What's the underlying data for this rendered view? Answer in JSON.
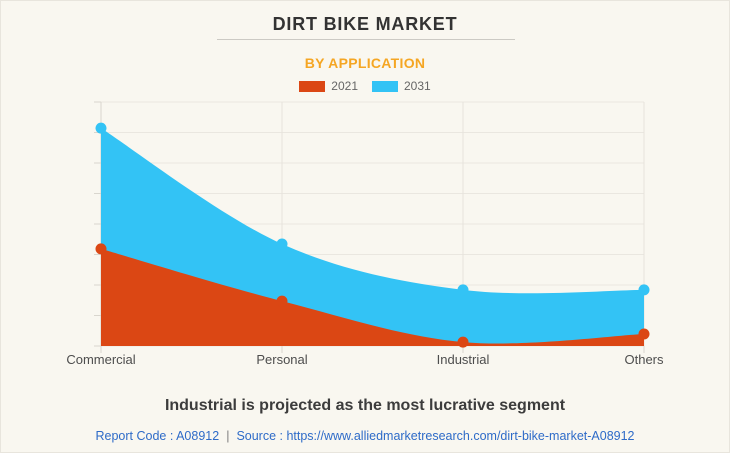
{
  "header": {
    "title": "DIRT BIKE MARKET",
    "subtitle": "BY APPLICATION"
  },
  "legend": [
    {
      "label": "2021",
      "color": "#DB4714"
    },
    {
      "label": "2031",
      "color": "#33C3F5"
    }
  ],
  "chart_data": {
    "type": "area",
    "categories": [
      "Commercial",
      "Personal",
      "Industrial",
      "Others"
    ],
    "series": [
      {
        "name": "2031",
        "color": "#33C3F5",
        "values": [
          89.3,
          41.8,
          23.0,
          23.0
        ]
      },
      {
        "name": "2021",
        "color": "#DB4714",
        "values": [
          39.8,
          18.4,
          1.6,
          4.9
        ]
      }
    ],
    "title": "DIRT BIKE MARKET",
    "subtitle": "BY APPLICATION",
    "xlabel": "",
    "ylabel": "",
    "ylim": [
      0,
      100
    ],
    "y_axis_labels_visible": false,
    "grid": true,
    "gridline_rows": 8,
    "legend_position": "top",
    "curve": "smooth",
    "note": "values are relative index (no y-axis labels shown)"
  },
  "footer": {
    "headline": "Industrial is projected as the most lucrative segment",
    "report_code_text": "Report Code : A08912",
    "separator": "|",
    "source_text": "Source : https://www.alliedmarketresearch.com/dirt-bike-market-A08912"
  }
}
